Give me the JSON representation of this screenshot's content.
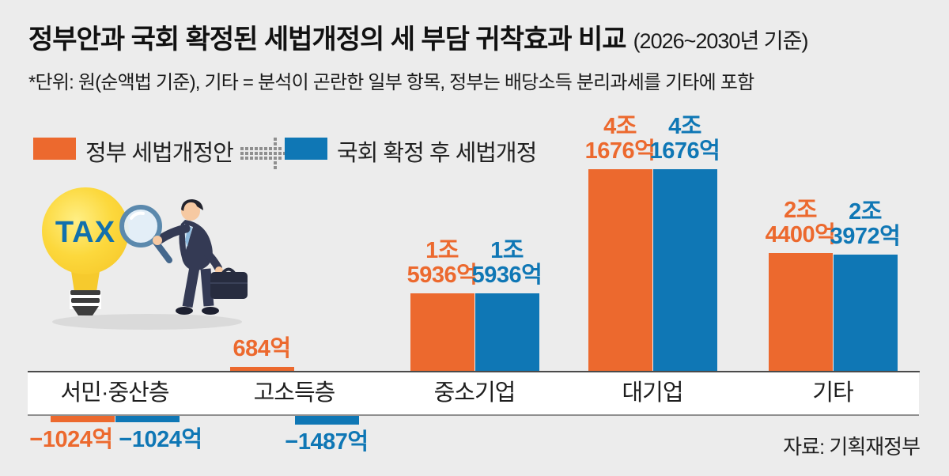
{
  "header": {
    "title": "정부안과 국회 확정된 세법개정의 세 부담 귀착효과 비교",
    "title_suffix": "(2026~2030년 기준)",
    "subtitle": "*단위: 원(순액법 기준), 기타 = 분석이 곤란한 일부 항목, 정부는 배당소득 분리과세를 기타에 포함"
  },
  "legend": {
    "items": [
      {
        "label": "정부 세법개정안",
        "color": "#ec692e"
      },
      {
        "label": "국회 확정 후 세법개정",
        "color": "#0f77b5"
      }
    ],
    "arrow_icon": "dotted-arrow-right"
  },
  "illustration": {
    "bulb_text": "TAX"
  },
  "source": "자료: 기획재정부",
  "colors": {
    "background": "#ececec",
    "orange": "#ec692e",
    "blue": "#0f77b5",
    "axis_top": "#4a4a4a",
    "axis_bottom": "#8f8f8f",
    "band": "#ffffff",
    "tax_text": "#1270ac",
    "bulb_yellow": "#fbd435"
  },
  "chart_data": {
    "type": "bar",
    "title": "정부안과 국회 확정된 세법개정의 세 부담 귀착효과 비교",
    "unit": "억 원 (순액법 기준)",
    "categories": [
      "서민·중산층",
      "고소득층",
      "중소기업",
      "대기업",
      "기타"
    ],
    "series": [
      {
        "name": "정부 세법개정안",
        "color": "#ec692e",
        "values": [
          -1024,
          684,
          15936,
          41676,
          24400
        ],
        "labels": [
          [
            "−1024억"
          ],
          [
            "684억"
          ],
          [
            "1조",
            "5936억"
          ],
          [
            "4조",
            "1676억"
          ],
          [
            "2조",
            "4400억"
          ]
        ]
      },
      {
        "name": "국회 확정 후 세법개정",
        "color": "#0f77b5",
        "values": [
          -1024,
          -1487,
          15936,
          41676,
          23972
        ],
        "labels": [
          [
            "−1024억"
          ],
          [
            "−1487억"
          ],
          [
            "1조",
            "5936억"
          ],
          [
            "4조",
            "1676억"
          ],
          [
            "2조",
            "3972억"
          ]
        ]
      }
    ],
    "ylim": [
      -1487,
      41676
    ],
    "grid": false,
    "legend_position": "top-left",
    "baseline_note": "양수 막대는 축 상단, 음수 막대는 범주띠 아래에 표시"
  }
}
